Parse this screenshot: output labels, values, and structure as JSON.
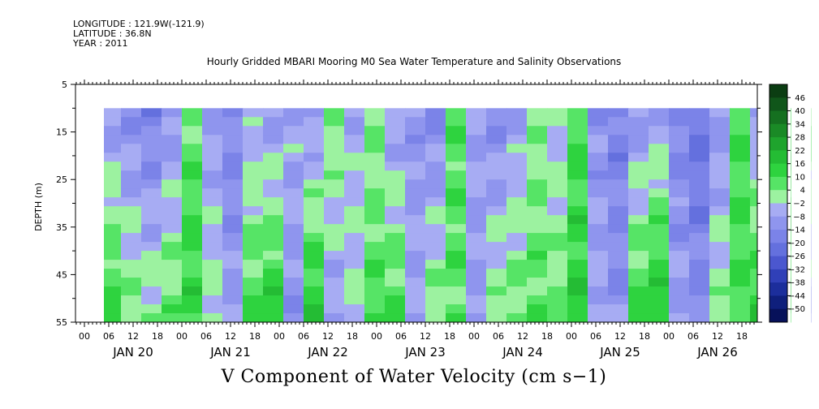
{
  "header": {
    "longitude": "LONGITUDE : 121.9W(-121.9)",
    "latitude": "LATITUDE : 36.8N",
    "year": "YEAR : 2011"
  },
  "chart_data": {
    "type": "heatmap",
    "title": "Hourly Gridded MBARI Mooring M0 Sea Water Temperature and Salinity Observations",
    "xlabel": "V Component of Water Velocity (cm s−1)",
    "ylabel": "DEPTH (m)",
    "ylim": [
      5,
      55
    ],
    "y_reversed": true,
    "y_ticks": [
      "5",
      "15",
      "25",
      "35",
      "45",
      "55"
    ],
    "x_hour_ticks": [
      "00",
      "06",
      "12",
      "18",
      "00",
      "06",
      "12",
      "18",
      "00",
      "06",
      "12",
      "18",
      "00",
      "06",
      "12",
      "18",
      "00",
      "06",
      "12",
      "18",
      "00",
      "06",
      "12",
      "18",
      "00",
      "06",
      "12",
      "18"
    ],
    "x_days": [
      "JAN 20",
      "JAN 21",
      "JAN 22",
      "JAN 23",
      "JAN 24",
      "JAN 25",
      "JAN 26"
    ],
    "data_depth_range": [
      10,
      55
    ],
    "colorbar": {
      "levels": [
        "46",
        "40",
        "34",
        "28",
        "22",
        "16",
        "10",
        "4",
        "−2",
        "−8",
        "−14",
        "−20",
        "−26",
        "−32",
        "−38",
        "−44",
        "−50"
      ],
      "range": [
        -50,
        50
      ],
      "colors_high_to_low": [
        "#0b3d12",
        "#10561a",
        "#157020",
        "#1a8a26",
        "#1fa42d",
        "#24bc34",
        "#2ed33f",
        "#56e466",
        "#9cf2a0",
        "#a7acf3",
        "#8f95ee",
        "#7b83e8",
        "#6470de",
        "#4b57cf",
        "#3040b8",
        "#1c2e9c",
        "#0f1f7c",
        "#07115a"
      ]
    },
    "bands": [
      {
        "x": [
          0,
          4
        ],
        "top": -8,
        "bottom": -4
      },
      {
        "x": [
          4,
          9
        ],
        "top": -6,
        "bottom": 14
      },
      {
        "x": [
          9,
          14
        ],
        "top": -10,
        "bottom": 6
      },
      {
        "x": [
          14,
          19
        ],
        "top": -14,
        "bottom": 4
      },
      {
        "x": [
          19,
          24
        ],
        "top": -8,
        "bottom": 8
      },
      {
        "x": [
          24,
          29
        ],
        "top": 6,
        "bottom": 14
      },
      {
        "x": [
          29,
          34
        ],
        "top": -6,
        "bottom": 2
      },
      {
        "x": [
          34,
          39
        ],
        "top": -12,
        "bottom": -6
      },
      {
        "x": [
          39,
          44
        ],
        "top": -4,
        "bottom": 12
      },
      {
        "x": [
          44,
          49
        ],
        "top": -6,
        "bottom": 16
      },
      {
        "x": [
          49,
          54
        ],
        "top": -2,
        "bottom": -10
      },
      {
        "x": [
          54,
          59
        ],
        "top": -8,
        "bottom": 18
      },
      {
        "x": [
          59,
          64
        ],
        "top": 6,
        "bottom": -6
      },
      {
        "x": [
          64,
          69
        ],
        "top": -4,
        "bottom": 2
      },
      {
        "x": [
          69,
          74
        ],
        "top": 4,
        "bottom": 10
      },
      {
        "x": [
          74,
          79
        ],
        "top": -6,
        "bottom": 12
      },
      {
        "x": [
          79,
          84
        ],
        "top": -8,
        "bottom": -4
      },
      {
        "x": [
          84,
          89
        ],
        "top": -12,
        "bottom": 6
      },
      {
        "x": [
          89,
          94
        ],
        "top": 10,
        "bottom": 8
      },
      {
        "x": [
          94,
          99
        ],
        "top": -4,
        "bottom": -8
      },
      {
        "x": [
          99,
          104
        ],
        "top": -10,
        "bottom": 4
      },
      {
        "x": [
          104,
          109
        ],
        "top": -6,
        "bottom": 8
      },
      {
        "x": [
          109,
          114
        ],
        "top": 2,
        "bottom": 10
      },
      {
        "x": [
          114,
          119
        ],
        "top": -2,
        "bottom": 6
      },
      {
        "x": [
          119,
          124
        ],
        "top": 10,
        "bottom": 16
      },
      {
        "x": [
          124,
          129
        ],
        "top": -10,
        "bottom": -2
      },
      {
        "x": [
          129,
          134
        ],
        "top": -14,
        "bottom": -8
      },
      {
        "x": [
          134,
          139
        ],
        "top": -8,
        "bottom": 14
      },
      {
        "x": [
          139,
          144
        ],
        "top": -4,
        "bottom": 18
      },
      {
        "x": [
          144,
          149
        ],
        "top": -12,
        "bottom": -6
      },
      {
        "x": [
          149,
          154
        ],
        "top": -18,
        "bottom": -10
      },
      {
        "x": [
          154,
          159
        ],
        "top": -8,
        "bottom": 4
      },
      {
        "x": [
          159,
          164
        ],
        "top": 12,
        "bottom": 10
      },
      {
        "x": [
          164,
          169
        ],
        "top": -6,
        "bottom": 16
      },
      {
        "x": [
          169,
          174
        ],
        "top": 0,
        "bottom": 8
      },
      {
        "x": [
          174,
          179
        ],
        "top": 14,
        "bottom": 14
      },
      {
        "x": [
          179,
          184
        ],
        "top": 8,
        "bottom": -6
      },
      {
        "x": [
          184,
          189
        ],
        "top": -6,
        "bottom": -10
      },
      {
        "x": [
          189,
          194
        ],
        "top": -10,
        "bottom": 12
      },
      {
        "x": [
          194,
          199
        ],
        "top": -4,
        "bottom": 14
      },
      {
        "x": [
          199,
          204
        ],
        "top": -8,
        "bottom": 10
      },
      {
        "x": [
          204,
          209
        ],
        "top": -4,
        "bottom": 6
      },
      {
        "x": [
          209,
          214
        ],
        "top": -12,
        "bottom": 12
      },
      {
        "x": [
          214,
          219
        ],
        "top": 4,
        "bottom": 4
      },
      {
        "x": [
          219,
          224
        ],
        "top": -8,
        "bottom": -4
      },
      {
        "x": [
          224,
          229
        ],
        "top": -12,
        "bottom": -8
      },
      {
        "x": [
          229,
          234
        ],
        "top": -14,
        "bottom": 8
      },
      {
        "x": [
          234,
          239
        ],
        "top": -6,
        "bottom": 14
      },
      {
        "x": [
          239,
          244
        ],
        "top": 2,
        "bottom": 6
      },
      {
        "x": [
          244,
          249
        ],
        "top": 10,
        "bottom": 2
      },
      {
        "x": [
          249,
          254
        ],
        "top": -10,
        "bottom": 14
      },
      {
        "x": [
          254,
          259
        ],
        "top": -12,
        "bottom": -6
      },
      {
        "x": [
          259,
          264
        ],
        "top": -8,
        "bottom": 4
      },
      {
        "x": [
          264,
          269
        ],
        "top": -18,
        "bottom": -4
      }
    ]
  }
}
